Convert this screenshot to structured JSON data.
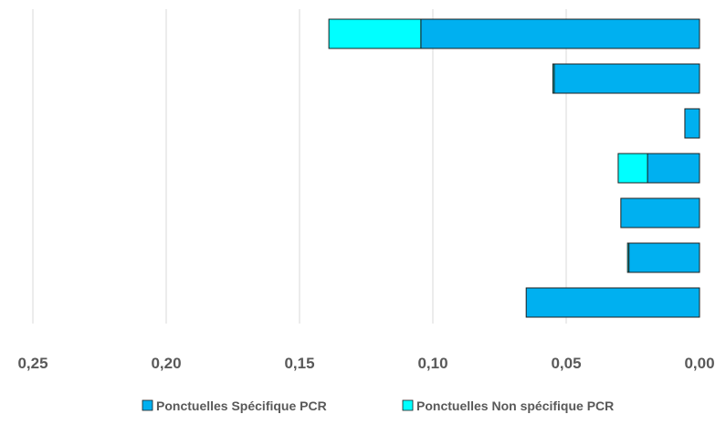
{
  "chart_data": {
    "type": "bar",
    "orientation": "horizontal",
    "stacked": true,
    "x_reversed": true,
    "xlim": [
      0,
      0.25
    ],
    "x_ticks": [
      0.25,
      0.2,
      0.15,
      0.1,
      0.05,
      0.0
    ],
    "x_tick_labels": [
      "0,25",
      "0,20",
      "0,15",
      "0,10",
      "0,05",
      "0,00"
    ],
    "grid": "vertical",
    "legend_position": "bottom",
    "series": [
      {
        "name": "Ponctuelles Spécifique PCR",
        "color": "#00B0F0",
        "values": [
          0.1045,
          0.0545,
          0.0055,
          0.0195,
          0.0295,
          0.0265,
          0.065
        ]
      },
      {
        "name": "Ponctuelles Non spécifique PCR",
        "color": "#00FFFF",
        "values": [
          0.0345,
          0.0005,
          0.0,
          0.011,
          0.0,
          0.0005,
          0.0
        ]
      }
    ]
  }
}
